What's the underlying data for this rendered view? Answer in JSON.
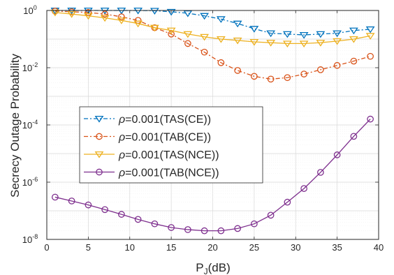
{
  "chart_data": {
    "type": "line",
    "xlabel_main": "P",
    "xlabel_sub": "J",
    "xlabel_unit": "(dB)",
    "ylabel": "Secrecy Outage Probability",
    "xlim": [
      0,
      40
    ],
    "ylim": [
      1e-08,
      1
    ],
    "yscale": "log",
    "grid": true,
    "legend_position": "center-left",
    "x_ticks": [
      0,
      5,
      10,
      15,
      20,
      25,
      30,
      35,
      40
    ],
    "y_ticks": [
      {
        "base": "10",
        "exp": "0",
        "value": 1
      },
      {
        "base": "10",
        "exp": "-2",
        "value": 0.01
      },
      {
        "base": "10",
        "exp": "-4",
        "value": 0.0001
      },
      {
        "base": "10",
        "exp": "-6",
        "value": 1e-06
      },
      {
        "base": "10",
        "exp": "-8",
        "value": 1e-08
      }
    ],
    "x": [
      1,
      3,
      5,
      7,
      9,
      11,
      13,
      15,
      17,
      19,
      21,
      23,
      25,
      27,
      29,
      31,
      33,
      35,
      37,
      39
    ],
    "series": [
      {
        "name": "ρ=0.001(TAS(CE))",
        "rho": "ρ",
        "label": "=0.001(TAS(CE))",
        "color": "#0072BD",
        "dash": "6,3,2,3",
        "marker": "triangle-down",
        "values": [
          1.0,
          1.0,
          1.0,
          1.0,
          1.0,
          1.0,
          0.98,
          0.9,
          0.8,
          0.65,
          0.5,
          0.35,
          0.23,
          0.16,
          0.15,
          0.14,
          0.15,
          0.16,
          0.2,
          0.22
        ]
      },
      {
        "name": "ρ=0.001(TAB(CE))",
        "rho": "ρ",
        "label": "=0.001(TAB(CE))",
        "color": "#D95319",
        "dash": "6,3,2,3",
        "marker": "circle",
        "values": [
          0.95,
          0.9,
          0.85,
          0.75,
          0.6,
          0.45,
          0.25,
          0.15,
          0.07,
          0.035,
          0.015,
          0.008,
          0.005,
          0.004,
          0.0045,
          0.006,
          0.0085,
          0.012,
          0.017,
          0.025
        ]
      },
      {
        "name": "ρ=0.001(TAS(NCE))",
        "rho": "ρ",
        "label": "=0.001(TAS(NCE))",
        "color": "#EDB120",
        "dash": "",
        "marker": "triangle-down",
        "values": [
          0.85,
          0.75,
          0.65,
          0.55,
          0.45,
          0.35,
          0.25,
          0.2,
          0.15,
          0.12,
          0.1,
          0.09,
          0.08,
          0.075,
          0.07,
          0.07,
          0.075,
          0.085,
          0.1,
          0.13
        ]
      },
      {
        "name": "ρ=0.001(TAB(NCE))",
        "rho": "ρ",
        "label": "=0.001(TAB(NCE))",
        "color": "#7E2F8E",
        "dash": "",
        "marker": "circle",
        "values": [
          3e-07,
          2.2e-07,
          1.6e-07,
          1.1e-07,
          7.5e-08,
          5e-08,
          3.5e-08,
          2.6e-08,
          2.2e-08,
          2e-08,
          2e-08,
          2.4e-08,
          3.5e-08,
          7e-08,
          2e-07,
          6e-07,
          2.2e-06,
          9e-06,
          4e-05,
          0.00016
        ]
      }
    ]
  }
}
